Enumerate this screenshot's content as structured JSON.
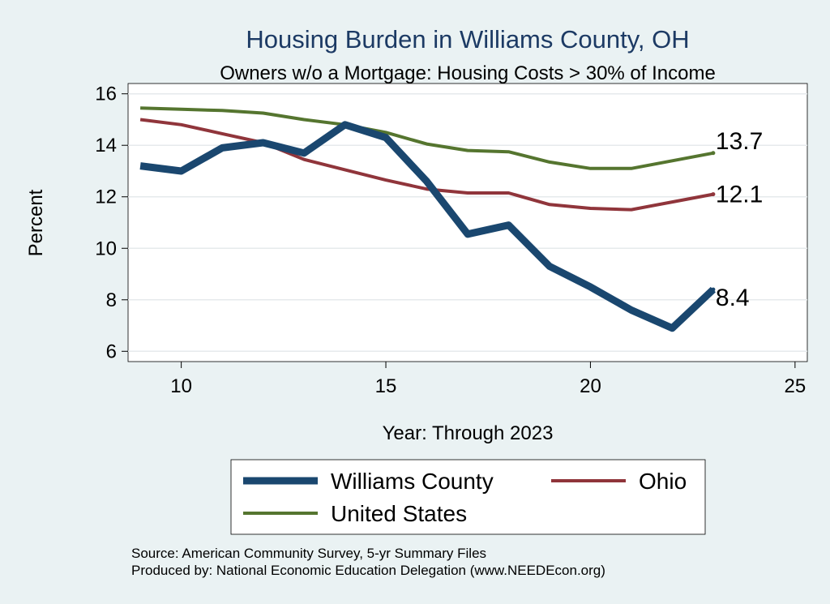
{
  "chart_data": {
    "type": "line",
    "title": "Housing Burden in Williams County, OH",
    "subtitle": "Owners w/o a Mortgage: Housing Costs > 30% of Income",
    "xlabel": "Year: Through 2023",
    "ylabel": "Percent",
    "xlim": [
      8.7,
      25.3
    ],
    "ylim": [
      5.6,
      16.4
    ],
    "x_ticks": [
      10,
      15,
      20,
      25
    ],
    "y_ticks": [
      6,
      8,
      10,
      12,
      14,
      16
    ],
    "grid": true,
    "legend_position": "bottom",
    "x": [
      9,
      10,
      11,
      12,
      13,
      14,
      15,
      16,
      17,
      18,
      19,
      20,
      21,
      22,
      23
    ],
    "series": [
      {
        "name": "Williams County",
        "color": "#1a476f",
        "values": [
          13.2,
          13.0,
          13.9,
          14.1,
          13.7,
          14.8,
          14.3,
          12.6,
          10.55,
          10.9,
          9.3,
          8.5,
          7.6,
          6.9,
          8.4
        ],
        "end_label": "8.4"
      },
      {
        "name": "Ohio",
        "color": "#90353b",
        "values": [
          15.0,
          14.8,
          14.45,
          14.1,
          13.45,
          13.05,
          12.65,
          12.3,
          12.15,
          12.15,
          11.7,
          11.55,
          11.5,
          11.8,
          12.1
        ],
        "end_label": "12.1"
      },
      {
        "name": "United States",
        "color": "#55752f",
        "values": [
          15.45,
          15.4,
          15.35,
          15.25,
          15.0,
          14.8,
          14.5,
          14.05,
          13.8,
          13.75,
          13.35,
          13.1,
          13.1,
          13.4,
          13.7
        ],
        "end_label": "13.7"
      }
    ],
    "notes": [
      "Source: American Community Survey, 5-yr Summary Files",
      "Produced by: National Economic Education Delegation (www.NEEDEcon.org)"
    ]
  }
}
